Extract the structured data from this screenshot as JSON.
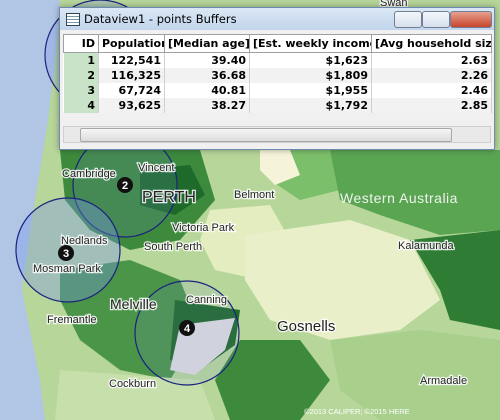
{
  "window": {
    "title": "Dataview1 - points Buffers"
  },
  "table": {
    "columns": [
      "ID",
      "Population",
      "[Median age]",
      "[Est. weekly income]",
      "[Avg household size]"
    ],
    "rows": [
      [
        "1",
        "122,541",
        "39.40",
        "$1,623",
        "2.63"
      ],
      [
        "2",
        "116,325",
        "36.68",
        "$1,809",
        "2.26"
      ],
      [
        "3",
        "67,724",
        "40.81",
        "$1,955",
        "2.46"
      ],
      [
        "4",
        "93,625",
        "38.27",
        "$1,792",
        "2.85"
      ]
    ]
  },
  "map": {
    "labels": [
      "Swan",
      "Vincent",
      "Cambridge",
      "PERTH",
      "Belmont",
      "Western Australia",
      "Victoria Park",
      "Nedlands",
      "South Perth",
      "Kalamunda",
      "Mosman Park",
      "Melville",
      "Canning",
      "Fremantle",
      "Gosnells",
      "Armadale",
      "Cockburn"
    ],
    "markers": [
      "2",
      "3",
      "4"
    ],
    "copyright": "©2013 CALIPER; ©2015 HERE"
  }
}
